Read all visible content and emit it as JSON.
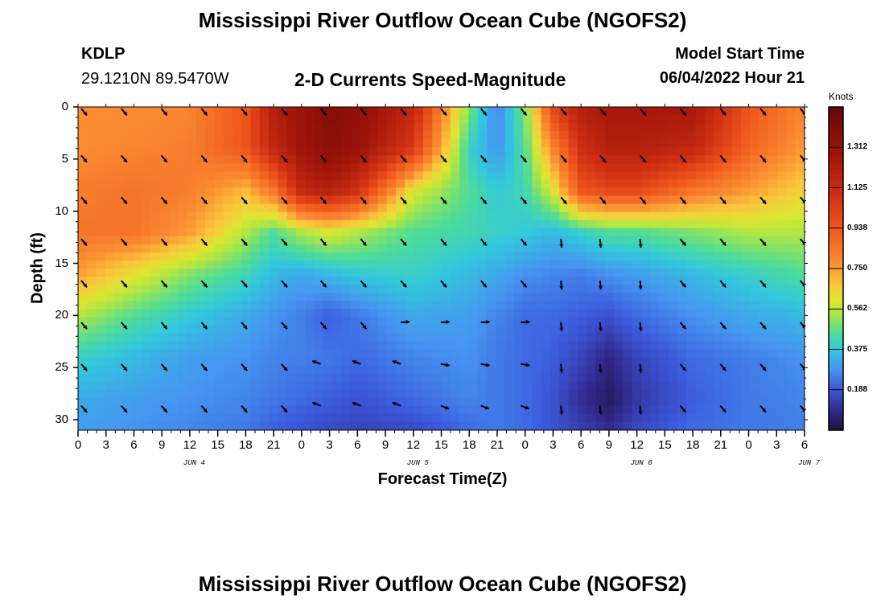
{
  "header": {
    "title": "Mississippi River Outflow Ocean Cube (NGOFS2)",
    "station": "KDLP",
    "coords": "29.1210N  89.5470W",
    "subtitle": "2-D Currents Speed-Magnitude",
    "model_label": "Model Start Time",
    "model_time": "06/04/2022 Hour 21",
    "bottom_title": "Mississippi River Outflow Ocean Cube (NGOFS2)"
  },
  "chart_data": {
    "type": "heatmap",
    "title": "2-D Currents Speed-Magnitude",
    "xlabel": "Forecast Time(Z)",
    "ylabel": "Depth (ft)",
    "x_tick_labels": [
      "0",
      "3",
      "6",
      "9",
      "12",
      "15",
      "18",
      "21",
      "0",
      "3",
      "6",
      "9",
      "12",
      "15",
      "18",
      "21",
      "0",
      "3",
      "6",
      "9",
      "12",
      "15",
      "18",
      "21",
      "0",
      "3",
      "6"
    ],
    "date_labels": [
      "JUN 4",
      "JUN 5",
      "JUN 6",
      "JUN 7"
    ],
    "date_label_ticks": [
      4,
      12,
      20,
      26
    ],
    "y_ticks": [
      0,
      5,
      10,
      15,
      20,
      25,
      30
    ],
    "ylim": [
      0,
      31
    ],
    "xlim_hours": [
      0,
      78
    ],
    "colorbar": {
      "unit": "Knots",
      "ticks": [
        0.188,
        0.375,
        0.562,
        0.75,
        0.938,
        1.125,
        1.312
      ],
      "tick_labels": [
        "0.188",
        "0.375",
        "0.562",
        "0.750",
        "0.938",
        "1.125",
        "1.312"
      ],
      "range": [
        0.0,
        1.5
      ]
    },
    "vector_depths_ft": [
      0,
      4.5,
      8.5,
      12.5,
      16.5,
      20.5,
      24.5,
      28.5
    ],
    "vector_hours": [
      0,
      4.3,
      8.6,
      12.9,
      17.2,
      21.5,
      25.7,
      30,
      34.3,
      38.6,
      42.9,
      47.2,
      51.5,
      55.7,
      60,
      64.3,
      68.6,
      72.9,
      77.2
    ],
    "speed_control_hours": [
      0,
      6,
      12,
      18,
      21,
      24,
      27,
      30,
      36,
      42,
      45,
      48,
      51,
      54,
      57,
      60,
      66,
      72,
      78
    ],
    "speed_control_depths": [
      0,
      4,
      8,
      12,
      16,
      20,
      24,
      28,
      31
    ],
    "speed_grid": [
      [
        0.78,
        0.78,
        0.8,
        0.95,
        1.2,
        1.3,
        1.38,
        1.35,
        1.15,
        0.5,
        0.25,
        0.5,
        1.0,
        1.2,
        1.25,
        1.25,
        1.25,
        0.95,
        0.8
      ],
      [
        0.78,
        0.8,
        0.82,
        0.95,
        1.15,
        1.28,
        1.35,
        1.3,
        1.05,
        0.4,
        0.28,
        0.45,
        0.8,
        1.1,
        1.2,
        1.2,
        1.15,
        0.9,
        0.75
      ],
      [
        0.82,
        0.85,
        0.82,
        0.7,
        0.85,
        1.15,
        1.2,
        1.1,
        0.6,
        0.45,
        0.38,
        0.42,
        0.6,
        0.95,
        1.0,
        1.0,
        0.85,
        0.75,
        0.65
      ],
      [
        0.85,
        0.85,
        0.75,
        0.55,
        0.45,
        0.55,
        0.6,
        0.55,
        0.45,
        0.42,
        0.4,
        0.38,
        0.35,
        0.4,
        0.45,
        0.45,
        0.5,
        0.55,
        0.55
      ],
      [
        0.75,
        0.62,
        0.5,
        0.42,
        0.35,
        0.32,
        0.35,
        0.38,
        0.4,
        0.35,
        0.32,
        0.28,
        0.26,
        0.25,
        0.28,
        0.3,
        0.35,
        0.4,
        0.45
      ],
      [
        0.55,
        0.45,
        0.38,
        0.32,
        0.28,
        0.25,
        0.2,
        0.24,
        0.32,
        0.3,
        0.26,
        0.22,
        0.22,
        0.2,
        0.18,
        0.22,
        0.28,
        0.32,
        0.35
      ],
      [
        0.4,
        0.35,
        0.3,
        0.28,
        0.26,
        0.25,
        0.24,
        0.22,
        0.26,
        0.28,
        0.24,
        0.22,
        0.2,
        0.15,
        0.08,
        0.15,
        0.22,
        0.25,
        0.28
      ],
      [
        0.32,
        0.3,
        0.28,
        0.26,
        0.24,
        0.22,
        0.2,
        0.18,
        0.22,
        0.26,
        0.24,
        0.22,
        0.18,
        0.1,
        0.04,
        0.12,
        0.2,
        0.24,
        0.26
      ],
      [
        0.3,
        0.28,
        0.26,
        0.24,
        0.2,
        0.18,
        0.16,
        0.15,
        0.16,
        0.22,
        0.24,
        0.22,
        0.18,
        0.14,
        0.1,
        0.16,
        0.22,
        0.24,
        0.25
      ]
    ]
  }
}
